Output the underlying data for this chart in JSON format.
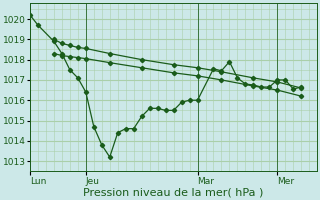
{
  "background_color": "#cce8e8",
  "plot_bg_color": "#cce8e8",
  "grid_color": "#aacfaa",
  "line_color": "#1a5c1a",
  "ylim": [
    1012.5,
    1020.8
  ],
  "yticks": [
    1013,
    1014,
    1015,
    1016,
    1017,
    1018,
    1019,
    1020
  ],
  "xlabel": "Pression niveau de la mer( hPa )",
  "xlabel_fontsize": 8,
  "tick_fontsize": 6.5,
  "day_labels": [
    "Lun",
    "Jeu",
    "Mar",
    "Mer"
  ],
  "day_positions": [
    0.0,
    3.5,
    10.5,
    15.5
  ],
  "xlim": [
    0,
    18
  ],
  "line1_x": [
    0.0,
    0.5,
    1.5,
    2.0,
    2.5,
    3.0,
    3.5,
    4.0,
    4.5,
    5.0,
    5.5,
    6.0,
    6.5,
    7.0,
    7.5,
    8.0,
    8.5,
    9.0,
    9.5,
    10.0,
    10.5,
    11.5,
    12.0,
    12.5,
    13.0,
    13.5,
    14.0,
    14.5,
    15.0,
    15.5,
    16.0,
    16.5,
    17.0
  ],
  "line1_y": [
    1020.2,
    1019.7,
    1018.9,
    1018.3,
    1017.5,
    1017.1,
    1016.4,
    1014.7,
    1013.8,
    1013.2,
    1014.4,
    1014.6,
    1014.6,
    1015.2,
    1015.6,
    1015.6,
    1015.5,
    1015.5,
    1015.9,
    1016.0,
    1016.0,
    1017.55,
    1017.45,
    1017.9,
    1017.1,
    1016.8,
    1016.75,
    1016.65,
    1016.65,
    1017.0,
    1017.0,
    1016.55,
    1016.65
  ],
  "line2_x": [
    1.5,
    2.0,
    2.5,
    3.0,
    3.5,
    5.0,
    7.0,
    9.0,
    10.5,
    12.0,
    14.0,
    15.5,
    17.0
  ],
  "line2_y": [
    1019.0,
    1018.8,
    1018.7,
    1018.6,
    1018.55,
    1018.3,
    1018.0,
    1017.75,
    1017.6,
    1017.4,
    1017.1,
    1016.9,
    1016.6
  ],
  "line3_x": [
    1.5,
    2.0,
    2.5,
    3.0,
    3.5,
    5.0,
    7.0,
    9.0,
    10.5,
    12.0,
    14.0,
    15.5,
    17.0
  ],
  "line3_y": [
    1018.3,
    1018.2,
    1018.15,
    1018.1,
    1018.05,
    1017.85,
    1017.6,
    1017.35,
    1017.2,
    1017.0,
    1016.7,
    1016.5,
    1016.2
  ]
}
